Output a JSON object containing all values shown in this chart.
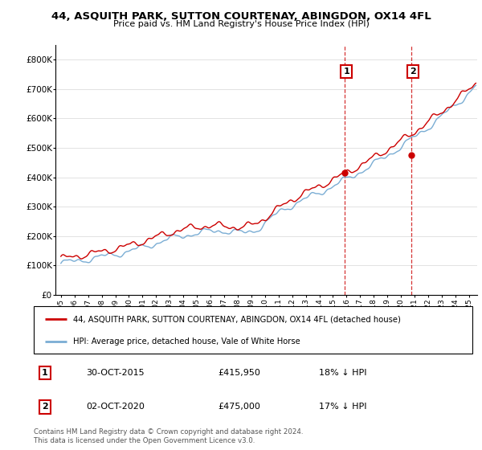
{
  "title": "44, ASQUITH PARK, SUTTON COURTENAY, ABINGDON, OX14 4FL",
  "subtitle": "Price paid vs. HM Land Registry's House Price Index (HPI)",
  "legend_line1": "44, ASQUITH PARK, SUTTON COURTENAY, ABINGDON, OX14 4FL (detached house)",
  "legend_line2": "HPI: Average price, detached house, Vale of White Horse",
  "annotation1_date": "30-OCT-2015",
  "annotation1_price": "£415,950",
  "annotation1_hpi": "18% ↓ HPI",
  "annotation2_date": "02-OCT-2020",
  "annotation2_price": "£475,000",
  "annotation2_hpi": "17% ↓ HPI",
  "footer": "Contains HM Land Registry data © Crown copyright and database right 2024.\nThis data is licensed under the Open Government Licence v3.0.",
  "red_color": "#cc0000",
  "blue_color": "#7aadd4",
  "vline_color": "#cc0000",
  "ylim": [
    0,
    850000
  ],
  "yticks": [
    0,
    100000,
    200000,
    300000,
    400000,
    500000,
    600000,
    700000,
    800000
  ],
  "ytick_labels": [
    "£0",
    "£100K",
    "£200K",
    "£300K",
    "£400K",
    "£500K",
    "£600K",
    "£700K",
    "£800K"
  ],
  "sale1_t": 2015.833,
  "sale1_price": 415950,
  "sale2_t": 2020.75,
  "sale2_price": 475000,
  "year_start": 1995,
  "year_end": 2025
}
